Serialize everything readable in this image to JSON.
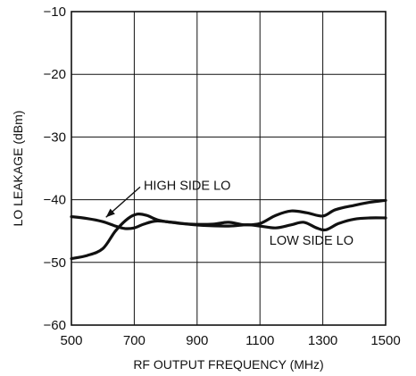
{
  "chart_data": {
    "type": "line",
    "title": "",
    "xlabel": "RF OUTPUT FREQUENCY (MHz)",
    "ylabel": "LO LEAKAGE (dBm)",
    "xlim": [
      500,
      1500
    ],
    "ylim": [
      -60,
      -10
    ],
    "xticks": [
      500,
      700,
      900,
      1100,
      1300,
      1500
    ],
    "yticks": [
      -60,
      -50,
      -40,
      -30,
      -20,
      -10
    ],
    "grid": true,
    "series": [
      {
        "name": "HIGH SIDE LO",
        "x": [
          500,
          550,
          600,
          640,
          670,
          700,
          730,
          770,
          820,
          880,
          950,
          1000,
          1050,
          1100,
          1150,
          1200,
          1250,
          1300,
          1340,
          1400,
          1450,
          1500
        ],
        "y": [
          -42.7,
          -43.0,
          -43.5,
          -44.2,
          -44.6,
          -44.5,
          -43.9,
          -43.4,
          -43.6,
          -43.9,
          -43.9,
          -43.6,
          -44.0,
          -43.8,
          -42.5,
          -41.8,
          -42.1,
          -42.6,
          -41.6,
          -40.9,
          -40.4,
          -40.1
        ]
      },
      {
        "name": "LOW SIDE LO",
        "x": [
          500,
          550,
          600,
          640,
          680,
          710,
          740,
          780,
          850,
          920,
          1000,
          1060,
          1100,
          1150,
          1200,
          1240,
          1280,
          1310,
          1350,
          1400,
          1450,
          1500
        ],
        "y": [
          -49.4,
          -48.9,
          -47.8,
          -45.0,
          -43.0,
          -42.3,
          -42.5,
          -43.3,
          -43.8,
          -44.1,
          -44.2,
          -44.0,
          -44.2,
          -44.5,
          -44.0,
          -43.6,
          -44.5,
          -44.8,
          -43.8,
          -43.1,
          -42.9,
          -42.9
        ]
      }
    ],
    "annotations": [
      {
        "text": "HIGH SIDE LO",
        "x": 730,
        "y": -38.4,
        "arrow_to": [
          610,
          -42.8
        ]
      },
      {
        "text": "LOW SIDE LO",
        "x": 1130,
        "y": -47.2
      }
    ]
  }
}
